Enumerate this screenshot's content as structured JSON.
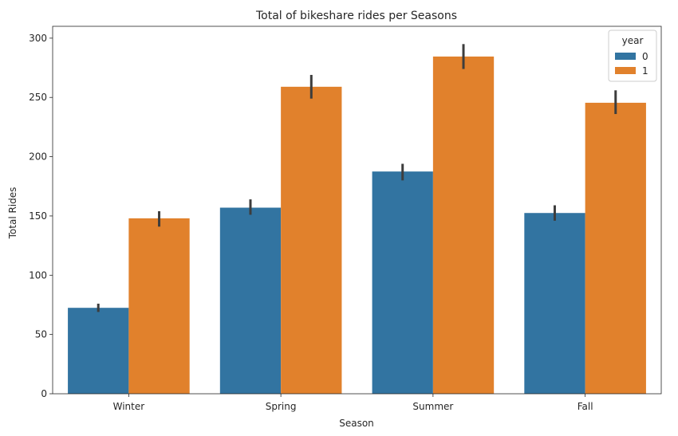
{
  "chart_data": {
    "type": "bar",
    "title": "Total of bikeshare rides per Seasons",
    "xlabel": "Season",
    "ylabel": "Total Rides",
    "categories": [
      "Winter",
      "Spring",
      "Summer",
      "Fall"
    ],
    "ylim": [
      0,
      310
    ],
    "yticks": [
      0,
      50,
      100,
      150,
      200,
      250,
      300
    ],
    "grid": false,
    "legend": {
      "title": "year",
      "placement": "top-right"
    },
    "series": [
      {
        "name": "0",
        "color": "#3274a1",
        "values": [
          72.5,
          157,
          187.5,
          152.5
        ],
        "err_low": [
          69,
          151,
          180,
          146
        ],
        "err_high": [
          76,
          164,
          194,
          159
        ]
      },
      {
        "name": "1",
        "color": "#e1812c",
        "values": [
          148,
          259,
          284.5,
          245.5
        ],
        "err_low": [
          141,
          249,
          274,
          236
        ],
        "err_high": [
          154,
          269,
          295,
          256
        ]
      }
    ]
  }
}
